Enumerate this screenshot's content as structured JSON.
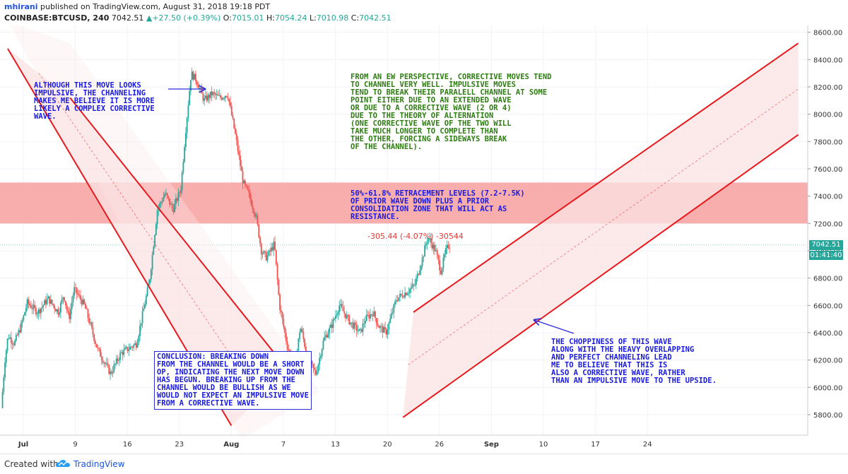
{
  "header": {
    "publisher": "mhirani",
    "published_text": "published on TradingView.com, August 31, 2018 19:18 PDT",
    "symbol": "COINBASE:BTCUSD, 240",
    "last": "7042.51",
    "change": "+27.50 (+0.39%)",
    "o_label": "O:",
    "o": "7015.01",
    "h_label": "H:",
    "h": "7054.24",
    "l_label": "L:",
    "l": "7010.98",
    "c_label": "C:",
    "c": "7042.51"
  },
  "colors": {
    "up": "#26a69a",
    "down": "#ef5350",
    "channel_line": "#e8191d",
    "resistance_zone": "#f8a0a0",
    "annotation_blue": "#1a1adf",
    "annotation_green": "#2e7d12"
  },
  "chart_data": {
    "type": "candlestick",
    "ylim": [
      5650,
      8650
    ],
    "y_ticks": [
      "5800.00",
      "6000.00",
      "6200.00",
      "6400.00",
      "6600.00",
      "6800.00",
      "7000.00",
      "7200.00",
      "7400.00",
      "7600.00",
      "7800.00",
      "8000.00",
      "8200.00",
      "8400.00",
      "8600.00"
    ],
    "x_ticks": [
      "Jul",
      "9",
      "16",
      "23",
      "Aug",
      "7",
      "13",
      "20",
      "26",
      "Sep",
      "10",
      "17",
      "24"
    ],
    "last_price": "7042.51",
    "countdown": "01:41:40",
    "resistance_zone": [
      7200,
      7500
    ],
    "measure_label": "-305.44 (-4.07%) -30544",
    "channels": [
      {
        "name": "descending",
        "upper": [
          [
            0.9,
            8120
          ],
          [
            5.1,
            6120
          ]
        ],
        "lower": [
          [
            -0.3,
            8480
          ],
          [
            4.0,
            5720
          ]
        ]
      },
      {
        "name": "ascending",
        "upper": [
          [
            7.5,
            6550
          ],
          [
            14.9,
            8520
          ]
        ],
        "lower": [
          [
            7.3,
            5780
          ],
          [
            14.9,
            7850
          ]
        ]
      }
    ],
    "path_anchors": [
      [
        -0.4,
        5850
      ],
      [
        -0.33,
        6200
      ],
      [
        -0.27,
        6380
      ],
      [
        -0.15,
        6320
      ],
      [
        -0.02,
        6450
      ],
      [
        0.1,
        6620
      ],
      [
        0.3,
        6550
      ],
      [
        0.5,
        6650
      ],
      [
        0.7,
        6550
      ],
      [
        0.8,
        6680
      ],
      [
        0.9,
        6500
      ],
      [
        1.0,
        6720
      ],
      [
        1.2,
        6600
      ],
      [
        1.45,
        6280
      ],
      [
        1.7,
        6100
      ],
      [
        1.9,
        6250
      ],
      [
        2.2,
        6320
      ],
      [
        2.45,
        6780
      ],
      [
        2.6,
        7300
      ],
      [
        2.75,
        7420
      ],
      [
        2.9,
        7300
      ],
      [
        3.05,
        7450
      ],
      [
        3.15,
        7900
      ],
      [
        3.25,
        8300
      ],
      [
        3.35,
        8250
      ],
      [
        3.5,
        8100
      ],
      [
        3.65,
        8150
      ],
      [
        3.8,
        8120
      ],
      [
        3.95,
        8150
      ],
      [
        4.1,
        7850
      ],
      [
        4.25,
        7500
      ],
      [
        4.35,
        7420
      ],
      [
        4.5,
        7250
      ],
      [
        4.6,
        7000
      ],
      [
        4.7,
        6950
      ],
      [
        4.85,
        7050
      ],
      [
        4.95,
        6600
      ],
      [
        5.1,
        6300
      ],
      [
        5.25,
        6150
      ],
      [
        5.35,
        6450
      ],
      [
        5.5,
        6200
      ],
      [
        5.65,
        6100
      ],
      [
        5.8,
        6350
      ],
      [
        5.95,
        6450
      ],
      [
        6.1,
        6600
      ],
      [
        6.3,
        6480
      ],
      [
        6.5,
        6400
      ],
      [
        6.6,
        6500
      ],
      [
        6.75,
        6550
      ],
      [
        6.85,
        6450
      ],
      [
        7.0,
        6400
      ],
      [
        7.2,
        6650
      ],
      [
        7.4,
        6700
      ],
      [
        7.55,
        6750
      ],
      [
        7.7,
        6950
      ],
      [
        7.8,
        7100
      ],
      [
        7.95,
        7000
      ],
      [
        8.05,
        6850
      ],
      [
        8.15,
        7000
      ],
      [
        8.2,
        7042
      ]
    ]
  },
  "annotations": {
    "top_left": "ALTHOUGH THIS MOVE LOOKS\nIMPULSIVE, THE CHANNELING\nMAKES ME BELIEVE IT IS MORE\nLIKELY A COMPLEX CORRECTIVE\nWAVE.",
    "ew_perspective": "FROM AN EW PERSPECTIVE, CORRECTIVE MOVES TEND\nTO CHANNEL VERY WELL. IMPULSIVE MOVES\nTEND TO BREAK THEIR PARALELL CHANNEL AT SOME\nPOINT EITHER DUE TO AN EXTENDED WAVE\nOR DUE TO A CORRECTIVE WAVE (2 OR 4)\nDUE TO THE THEORY OF ALTERNATION\n(ONE CORRECTIVE WAVE OF THE TWO WILL\nTAKE MUCH LONGER TO COMPLETE THAN\nTHE OTHER, FORCING A SIDEWAYS BREAK\nOF THE CHANNEL).",
    "retracement": "50%-61.8% RETRACEMENT LEVELS (7.2-7.5K)\nOF PRIOR WAVE DOWN PLUS A PRIOR\nCONSOLIDATION ZONE THAT WILL ACT AS\nRESISTANCE.",
    "conclusion": "CONCLUSION: BREAKING DOWN\nFROM THE CHANNEL WOULD BE A SHORT\nOP, INDICATING THE NEXT MOVE DOWN\nHAS BEGUN. BREAKING UP FROM THE\nCHANNEL WOULD BE BULLISH AS WE\nWOULD NOT EXPECT AN IMPULSIVE MOVE\nFROM A CORRECTIVE WAVE.",
    "choppiness": "THE CHOPPINESS OF THIS WAVE\nALONG WITH THE HEAVY OVERLAPPING\nAND PERFECT CHANNELING LEAD\nME TO BELIEVE THAT THIS IS\nALSO A CORRECTIVE WAVE, RATHER\nTHAN AN IMPULSIVE MOVE TO THE UPSIDE."
  },
  "footer": {
    "created_with": "Created with",
    "brand": "TradingView"
  }
}
